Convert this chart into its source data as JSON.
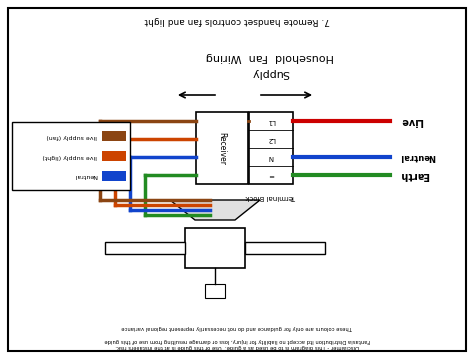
{
  "title": "7. Remote handset controls fan and light",
  "subtitle1": "Household  Fan  Wiring",
  "subtitle2": "Supply",
  "bg_color": "#ffffff",
  "border_color": "#000000",
  "wire_brown": "#8B4513",
  "wire_orange": "#CC4400",
  "wire_blue": "#1144CC",
  "wire_green": "#228B22",
  "wire_red": "#CC0000",
  "wire_blue2": "#1144CC",
  "wire_green2": "#228B22",
  "label_live": "Live",
  "label_neutral": "Neutral",
  "label_earth": "Earth",
  "terminal_labels": [
    "L1",
    "L2",
    "N",
    "="
  ],
  "terminal_block_label": "Terminal Block",
  "receiver_label": "Receiver",
  "legend_items": [
    {
      "label": "live supply (fan)",
      "color": "#8B4513"
    },
    {
      "label": "live supply (light)",
      "color": "#CC4400"
    },
    {
      "label": "Neutral",
      "color": "#1144CC"
    }
  ],
  "disclaimer_line1": "Disclaimer - This diagram is to be used as a guide.  Use of this guide is at the installers risk.",
  "disclaimer_line2": "Fantasia Distribution ltd accept no liability for injury, loss or damage resulting from use of this guide",
  "disclaimer_line3": "These colours are only for guidance and do not necessarily represent regional variance"
}
